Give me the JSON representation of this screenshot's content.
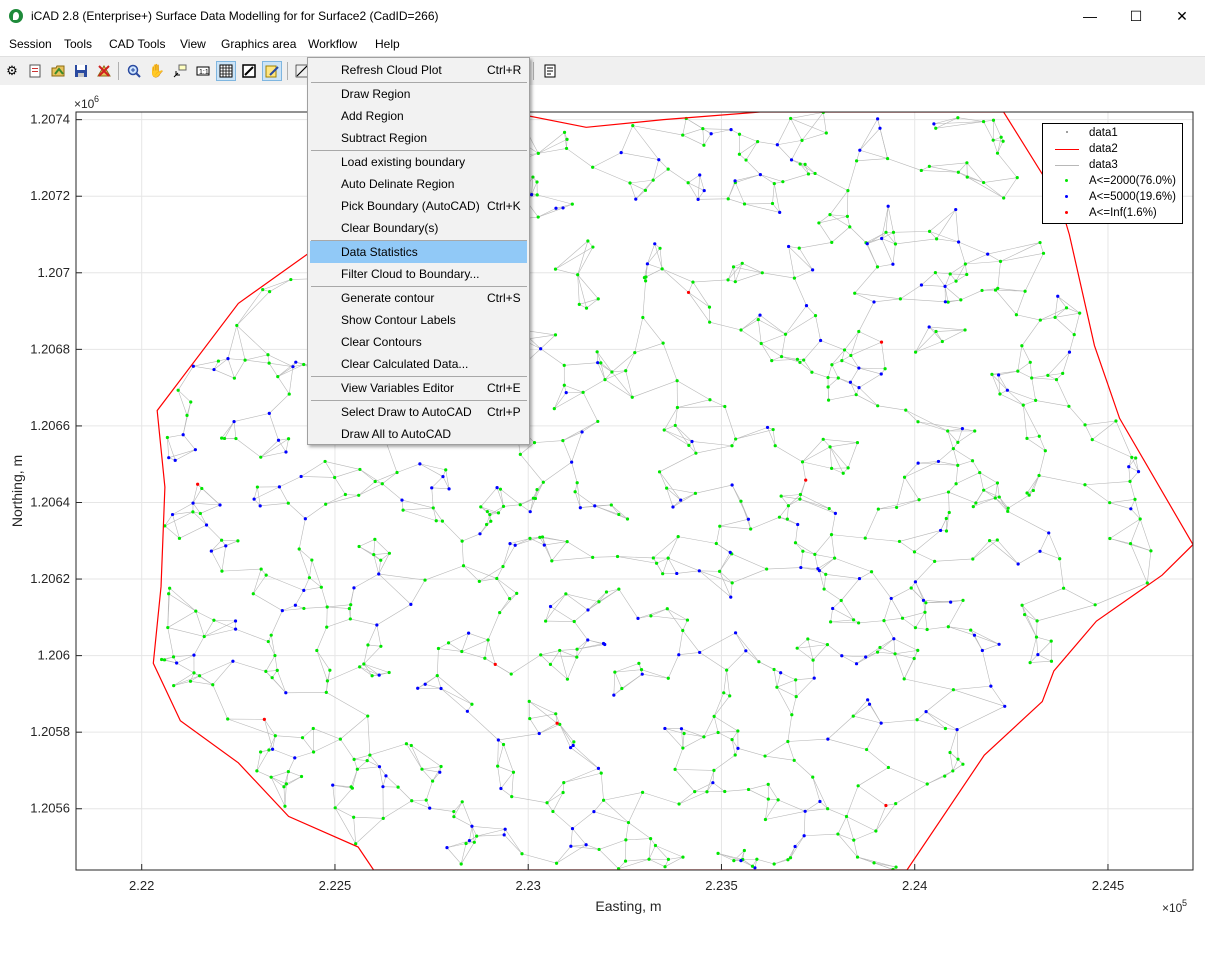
{
  "window": {
    "title": "iCAD 2.8  (Enterprise+) Surface Data Modelling for for Surface2 (CadID=266)",
    "min_glyph": "—",
    "max_glyph": "☐",
    "close_glyph": "✕"
  },
  "menubar": [
    "Session",
    "Tools",
    "CAD Tools",
    "View",
    "Graphics area",
    "Workflow",
    "Help"
  ],
  "toolbar": {
    "icons": [
      "settings-icon",
      "new-document-icon",
      "open-folder-icon",
      "save-icon",
      "export-icon",
      "zoom-in-icon",
      "pan-hand-icon",
      "data-cursor-icon",
      "one-to-one-icon",
      "grid-icon",
      "edit-window-icon",
      "note-icon",
      "line-tool-icon",
      "properties-icon"
    ],
    "selected": [
      "grid-icon",
      "note-icon"
    ]
  },
  "menu": {
    "items": [
      {
        "label": "Refresh Cloud Plot",
        "shortcut": "Ctrl+R"
      },
      {
        "separator": true
      },
      {
        "label": "Draw Region",
        "shortcut": ""
      },
      {
        "label": "Add Region",
        "shortcut": ""
      },
      {
        "label": "Subtract Region",
        "shortcut": ""
      },
      {
        "separator": true
      },
      {
        "label": "Load existing boundary",
        "shortcut": ""
      },
      {
        "label": "Auto Delinate Region",
        "shortcut": ""
      },
      {
        "label": "Pick Boundary (AutoCAD)",
        "shortcut": "Ctrl+K"
      },
      {
        "label": "Clear Boundary(s)",
        "shortcut": ""
      },
      {
        "separator": true
      },
      {
        "label": "Data Statistics",
        "shortcut": "",
        "highlighted": true
      },
      {
        "label": "Filter Cloud to Boundary...",
        "shortcut": ""
      },
      {
        "separator": true
      },
      {
        "label": "Generate contour",
        "shortcut": "Ctrl+S"
      },
      {
        "label": "Show Contour Labels",
        "shortcut": ""
      },
      {
        "label": "Clear Contours",
        "shortcut": ""
      },
      {
        "label": "Clear Calculated Data...",
        "shortcut": ""
      },
      {
        "separator": true
      },
      {
        "label": "View Variables Editor",
        "shortcut": "Ctrl+E"
      },
      {
        "separator": true
      },
      {
        "label": "Select Draw to AutoCAD",
        "shortcut": "Ctrl+P"
      },
      {
        "label": "Draw All to AutoCAD",
        "shortcut": ""
      }
    ]
  },
  "chart_data": {
    "type": "scatter",
    "xlabel": "Easting, m",
    "ylabel": "Northing, m",
    "x_exponent_label": "×10",
    "x_exponent": "5",
    "y_exponent_label": "×10",
    "y_exponent": "6",
    "xlim": [
      221830,
      224720
    ],
    "ylim": [
      1205440,
      1207420
    ],
    "xticks": [
      {
        "v": 222000,
        "label": "2.22"
      },
      {
        "v": 222500,
        "label": "2.225"
      },
      {
        "v": 223000,
        "label": "2.23"
      },
      {
        "v": 223500,
        "label": "2.235"
      },
      {
        "v": 224000,
        "label": "2.24"
      },
      {
        "v": 224500,
        "label": "2.245"
      }
    ],
    "yticks": [
      {
        "v": 1205600,
        "label": "1.2056"
      },
      {
        "v": 1205800,
        "label": "1.2058"
      },
      {
        "v": 1206000,
        "label": "1.206"
      },
      {
        "v": 1206200,
        "label": "1.2062"
      },
      {
        "v": 1206400,
        "label": "1.2064"
      },
      {
        "v": 1206600,
        "label": "1.2066"
      },
      {
        "v": 1206800,
        "label": "1.2068"
      },
      {
        "v": 1207000,
        "label": "1.207"
      },
      {
        "v": 1207200,
        "label": "1.2072"
      },
      {
        "v": 1207400,
        "label": "1.2074"
      }
    ],
    "grid": true,
    "legend_position": "top-right",
    "series": [
      {
        "name": "data1",
        "kind": "points",
        "color": "#7f7f7f"
      },
      {
        "name": "data2",
        "kind": "line",
        "color": "#ff0000",
        "points": [
          [
            222950,
            1207420
          ],
          [
            223150,
            1207380
          ],
          [
            223350,
            1207400
          ],
          [
            223600,
            1207420
          ],
          [
            224230,
            1207420
          ],
          [
            224375,
            1207185
          ],
          [
            224400,
            1207100
          ],
          [
            224465,
            1206810
          ],
          [
            224530,
            1206620
          ],
          [
            224720,
            1206290
          ],
          [
            224640,
            1206210
          ],
          [
            224470,
            1206090
          ],
          [
            224360,
            1205960
          ],
          [
            224330,
            1205880
          ],
          [
            224180,
            1205740
          ],
          [
            223980,
            1205440
          ],
          [
            222600,
            1205440
          ],
          [
            222560,
            1205500
          ],
          [
            222380,
            1205580
          ],
          [
            222250,
            1205720
          ],
          [
            222100,
            1205830
          ],
          [
            222030,
            1205980
          ],
          [
            222050,
            1206180
          ],
          [
            222060,
            1206440
          ],
          [
            222040,
            1206640
          ],
          [
            222250,
            1206920
          ],
          [
            222500,
            1207100
          ],
          [
            222700,
            1207300
          ],
          [
            222950,
            1207420
          ]
        ]
      },
      {
        "name": "data3",
        "kind": "line",
        "color": "#b8b8b8"
      },
      {
        "name": "A<=2000(76.0%)",
        "kind": "points",
        "color": "#00e600"
      },
      {
        "name": "A<=5000(19.6%)",
        "kind": "points",
        "color": "#0000ff"
      },
      {
        "name": "A<=Inf(1.6%)",
        "kind": "points",
        "color": "#ff0000"
      }
    ]
  }
}
